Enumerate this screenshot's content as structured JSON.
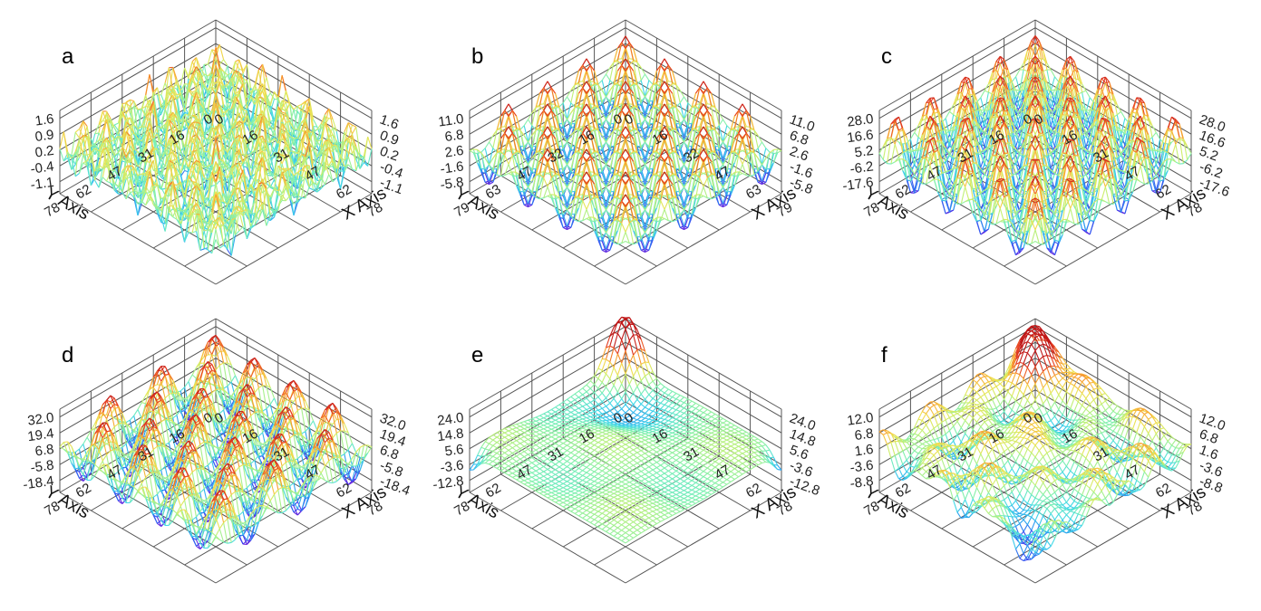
{
  "chart_data": [
    {
      "type": "surface3d",
      "panel_label": "a",
      "xlabel": "X Axis",
      "ylabel": "Y Axis",
      "xticks": [
        "0",
        "16",
        "31",
        "47",
        "62",
        "78"
      ],
      "yticks": [
        "0",
        "16",
        "31",
        "47",
        "62",
        "78"
      ],
      "zticks": [
        "1.6",
        "0.9",
        "0.2",
        "-0.4",
        "-1.1"
      ],
      "zlim": [
        -1.4,
        1.9
      ],
      "surface": {
        "kind": "fine_ripple",
        "waves_x": 7,
        "waves_y": 7
      }
    },
    {
      "type": "surface3d",
      "panel_label": "b",
      "xlabel": "X Axis",
      "ylabel": "Y Axis",
      "xticks": [
        "0",
        "16",
        "32",
        "47",
        "63",
        "79"
      ],
      "yticks": [
        "0",
        "16",
        "32",
        "47",
        "63",
        "79"
      ],
      "zticks": [
        "11.0",
        "6.8",
        "2.6",
        "-1.6",
        "-5.8"
      ],
      "zlim": [
        -7.5,
        12.5
      ],
      "surface": {
        "kind": "egg_crate",
        "waves_x": 4,
        "waves_y": 4
      }
    },
    {
      "type": "surface3d",
      "panel_label": "c",
      "xlabel": "X Axis",
      "ylabel": "Y Axis",
      "xticks": [
        "0",
        "16",
        "31",
        "47",
        "62",
        "78"
      ],
      "yticks": [
        "0",
        "16",
        "31",
        "47",
        "62",
        "78"
      ],
      "zticks": [
        "28.0",
        "16.6",
        "5.2",
        "-6.2",
        "-17.6"
      ],
      "zlim": [
        -21,
        32
      ],
      "surface": {
        "kind": "egg_crate",
        "waves_x": 4.5,
        "waves_y": 4.5
      }
    },
    {
      "type": "surface3d",
      "panel_label": "d",
      "xlabel": "X Axis",
      "ylabel": "Y Axis",
      "xticks": [
        "0",
        "16",
        "31",
        "47",
        "62",
        "78"
      ],
      "yticks": [
        "0",
        "16",
        "31",
        "47",
        "62",
        "78"
      ],
      "zticks": [
        "32.0",
        "19.4",
        "6.8",
        "-5.8",
        "-18.4"
      ],
      "zlim": [
        -22,
        36
      ],
      "surface": {
        "kind": "egg_crate_wide",
        "waves_x": 3,
        "waves_y": 4
      }
    },
    {
      "type": "surface3d",
      "panel_label": "e",
      "xlabel": "X Axis",
      "ylabel": "Y Axis",
      "xticks": [
        "0",
        "16",
        "31",
        "47",
        "62",
        "78"
      ],
      "yticks": [
        "0",
        "16",
        "31",
        "47",
        "62",
        "78"
      ],
      "zticks": [
        "24.0",
        "14.8",
        "5.6",
        "-3.6",
        "-12.8"
      ],
      "zlim": [
        -15,
        28
      ],
      "surface": {
        "kind": "smooth_peak"
      }
    },
    {
      "type": "surface3d",
      "panel_label": "f",
      "xlabel": "X Axis",
      "ylabel": "Y Axis",
      "xticks": [
        "0",
        "16",
        "31",
        "47",
        "62",
        "78"
      ],
      "yticks": [
        "0",
        "16",
        "31",
        "47",
        "62",
        "78"
      ],
      "zticks": [
        "12.0",
        "6.8",
        "1.6",
        "-3.6",
        "-8.8"
      ],
      "zlim": [
        -11,
        14
      ],
      "surface": {
        "kind": "bumpy"
      }
    }
  ],
  "colormap": [
    "#7a1fd6",
    "#3a3ff0",
    "#2a9af0",
    "#40d8e8",
    "#7ef0b0",
    "#c8f070",
    "#f0e050",
    "#f8a030",
    "#e84020",
    "#c01818"
  ]
}
